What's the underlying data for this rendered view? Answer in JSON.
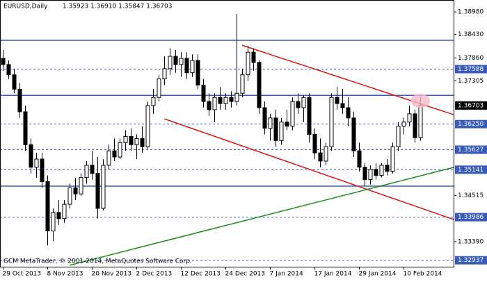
{
  "chart_data": {
    "type": "candlestick",
    "header_symbol": "EURUSD,Daily",
    "header_ohlc": "1.35923 1.36910 1.35847 1.36703",
    "watermark": "GCM MetaTrader, © 2001-2014, MetaQuotes Software Corp.",
    "categories": [
      "29 Oct 2013",
      null,
      null,
      null,
      null,
      null,
      null,
      null,
      "8 Nov 2013",
      null,
      null,
      null,
      null,
      null,
      null,
      null,
      "20 Nov 2013",
      null,
      null,
      null,
      null,
      null,
      null,
      null,
      "2 Dec 2013",
      null,
      null,
      null,
      null,
      null,
      null,
      null,
      "12 Dec 2013",
      null,
      null,
      null,
      null,
      null,
      null,
      null,
      "24 Dec 2013",
      null,
      null,
      null,
      null,
      null,
      null,
      null,
      "7 Jan 2014",
      null,
      null,
      null,
      null,
      null,
      null,
      null,
      "17 Jan 2014",
      null,
      null,
      null,
      null,
      null,
      null,
      null,
      "29 Jan 2014",
      null,
      null,
      null,
      null,
      null,
      null,
      null,
      "10 Feb 2014",
      null,
      null,
      null
    ],
    "open": [
      1.3785,
      1.377,
      1.3745,
      1.371,
      1.3655,
      1.3575,
      1.352,
      1.354,
      1.3485,
      1.3365,
      1.341,
      1.3395,
      1.343,
      1.347,
      1.3455,
      1.3495,
      1.3525,
      1.3505,
      1.342,
      1.3525,
      1.356,
      1.3545,
      1.358,
      1.3595,
      1.3575,
      1.359,
      1.357,
      1.367,
      1.369,
      1.3735,
      1.376,
      1.379,
      1.377,
      1.3785,
      1.375,
      1.378,
      1.372,
      1.368,
      1.366,
      1.369,
      1.3675,
      1.369,
      1.368,
      1.37,
      1.3745,
      1.38,
      1.3775,
      1.3665,
      1.3615,
      1.364,
      1.3585,
      1.363,
      1.362,
      1.368,
      1.3665,
      1.369,
      1.36,
      1.3555,
      1.3535,
      1.357,
      1.369,
      1.3675,
      1.3665,
      1.364,
      1.356,
      1.352,
      1.349,
      1.3515,
      1.35,
      1.3525,
      1.351,
      1.357,
      1.362,
      1.363,
      1.365,
      1.35923
    ],
    "high": [
      1.3805,
      1.378,
      1.376,
      1.3725,
      1.367,
      1.359,
      1.3555,
      1.3555,
      1.35,
      1.342,
      1.344,
      1.344,
      1.348,
      1.3495,
      1.3505,
      1.3535,
      1.356,
      1.3545,
      1.354,
      1.3575,
      1.359,
      1.359,
      1.361,
      1.3615,
      1.36,
      1.362,
      1.368,
      1.371,
      1.3745,
      1.379,
      1.381,
      1.3805,
      1.38,
      1.38,
      1.3795,
      1.3795,
      1.3735,
      1.37,
      1.37,
      1.3715,
      1.37,
      1.3705,
      1.3893,
      1.376,
      1.3815,
      1.381,
      1.378,
      1.368,
      1.365,
      1.366,
      1.364,
      1.366,
      1.369,
      1.37,
      1.3695,
      1.37,
      1.3615,
      1.359,
      1.358,
      1.37,
      1.3715,
      1.371,
      1.369,
      1.3655,
      1.358,
      1.353,
      1.3525,
      1.353,
      1.353,
      1.354,
      1.358,
      1.363,
      1.364,
      1.367,
      1.366,
      1.3691
    ],
    "low": [
      1.3755,
      1.3735,
      1.37,
      1.364,
      1.356,
      1.3505,
      1.3495,
      1.347,
      1.333,
      1.334,
      1.338,
      1.3385,
      1.342,
      1.344,
      1.345,
      1.348,
      1.349,
      1.3395,
      1.3415,
      1.3515,
      1.3535,
      1.354,
      1.356,
      1.356,
      1.354,
      1.3555,
      1.3565,
      1.365,
      1.368,
      1.372,
      1.3745,
      1.375,
      1.374,
      1.3735,
      1.374,
      1.371,
      1.3665,
      1.3645,
      1.363,
      1.366,
      1.366,
      1.3665,
      1.367,
      1.369,
      1.373,
      1.3755,
      1.365,
      1.36,
      1.3585,
      1.357,
      1.3575,
      1.361,
      1.361,
      1.365,
      1.363,
      1.358,
      1.354,
      1.352,
      1.3525,
      1.356,
      1.366,
      1.365,
      1.362,
      1.3545,
      1.351,
      1.3475,
      1.3478,
      1.349,
      1.3495,
      1.35,
      1.3505,
      1.356,
      1.36,
      1.362,
      1.358,
      1.35847
    ],
    "close": [
      1.377,
      1.3745,
      1.371,
      1.3655,
      1.3575,
      1.352,
      1.354,
      1.3485,
      1.3365,
      1.341,
      1.3395,
      1.343,
      1.347,
      1.3455,
      1.3495,
      1.3525,
      1.3505,
      1.342,
      1.3525,
      1.356,
      1.3545,
      1.358,
      1.3595,
      1.3575,
      1.359,
      1.357,
      1.367,
      1.369,
      1.3735,
      1.376,
      1.379,
      1.377,
      1.3785,
      1.375,
      1.378,
      1.372,
      1.368,
      1.366,
      1.369,
      1.3675,
      1.369,
      1.368,
      1.37,
      1.3745,
      1.38,
      1.3775,
      1.3665,
      1.3615,
      1.364,
      1.3585,
      1.363,
      1.362,
      1.368,
      1.3665,
      1.369,
      1.36,
      1.3555,
      1.3535,
      1.357,
      1.369,
      1.3675,
      1.3665,
      1.364,
      1.356,
      1.352,
      1.349,
      1.3515,
      1.35,
      1.3525,
      1.351,
      1.357,
      1.362,
      1.363,
      1.365,
      1.3592,
      1.36703
    ],
    "xlim": [
      -0.5,
      81
    ],
    "ylim": [
      1.3278,
      1.3927
    ],
    "yticks": [
      {
        "value": 1.3898,
        "label": "1.38980"
      },
      {
        "value": 1.3843,
        "label": "1.38430"
      },
      {
        "value": 1.3786,
        "label": "1.37860"
      },
      {
        "value": 1.37305,
        "label": "1.37305"
      },
      {
        "value": 1.34515,
        "label": "1.34515"
      },
      {
        "value": 1.3339,
        "label": "1.33390"
      }
    ],
    "levels": [
      1.37588,
      {
        "value": 1.3625,
        "label": "1.36250"
      },
      1.35627,
      1.35141,
      1.33986,
      1.32937
    ],
    "solid_lines": [
      1.3829,
      1.3695,
      1.3474
    ],
    "solid_line_color": "#3a5bb8",
    "level_color": "#3a5bb8",
    "trendlines": [
      {
        "color": "#dd1111",
        "x": [
          43,
          81
        ],
        "y": [
          1.38169,
          1.3648
        ]
      },
      {
        "color": "#dd1111",
        "x": [
          29,
          81
        ],
        "y": [
          1.36379,
          1.3393
        ]
      },
      {
        "color": "#1a8a1a",
        "x": [
          12,
          81
        ],
        "y": [
          1.32816,
          1.35197
        ]
      }
    ],
    "up_color": "#ffffff",
    "down_color": "#000000"
  }
}
